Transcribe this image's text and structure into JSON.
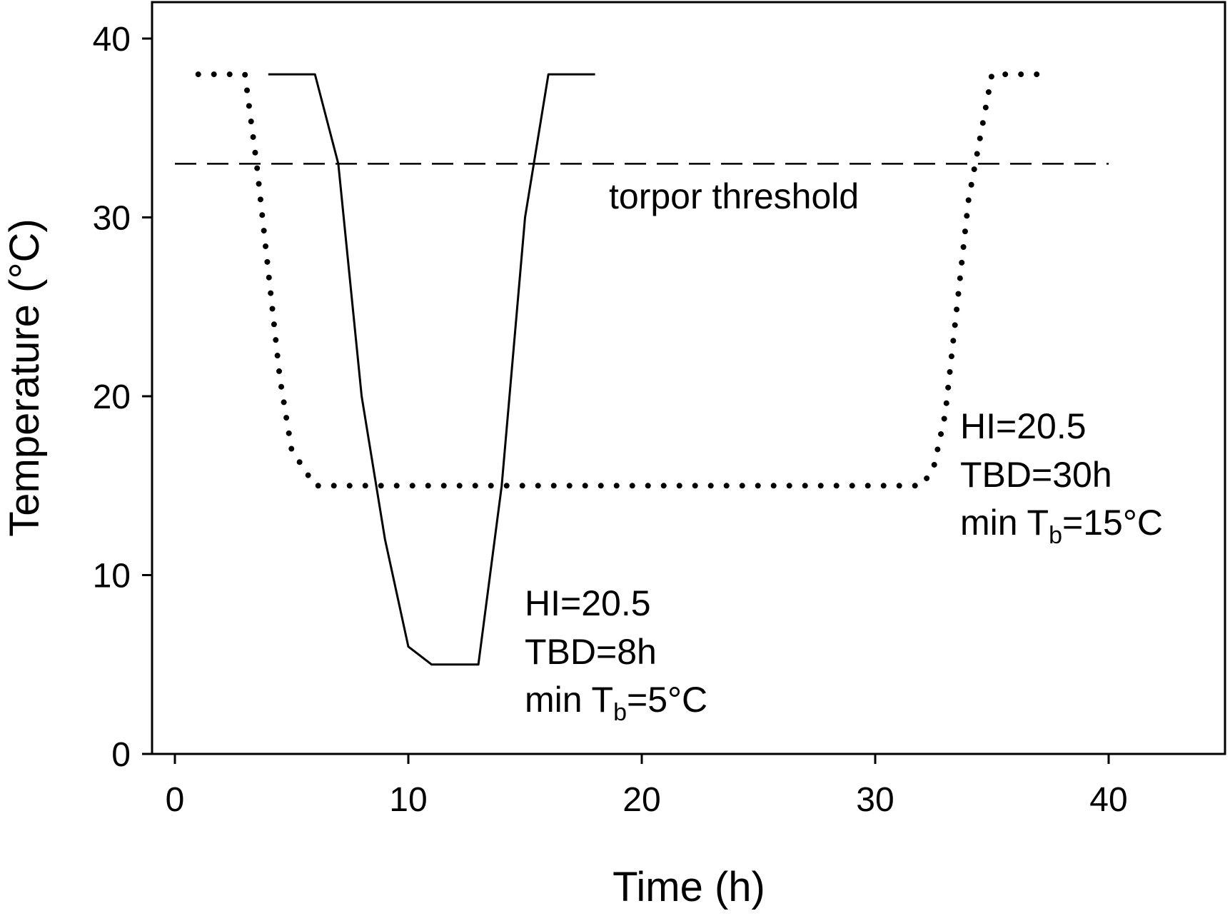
{
  "chart_data": {
    "type": "line",
    "title": "",
    "xlabel": "Time (h)",
    "ylabel": "Temperature (°C)",
    "xlim": [
      -1,
      45
    ],
    "ylim": [
      0,
      42
    ],
    "xticks": [
      0,
      10,
      20,
      30,
      40
    ],
    "yticks": [
      0,
      10,
      20,
      30,
      40
    ],
    "grid": false,
    "legend": "none",
    "series": [
      {
        "style": "solid",
        "color": "#000000",
        "points": [
          [
            4,
            38
          ],
          [
            6,
            38
          ],
          [
            7,
            33
          ],
          [
            8,
            20
          ],
          [
            9,
            12
          ],
          [
            10,
            6
          ],
          [
            11,
            5
          ],
          [
            13,
            5
          ],
          [
            14,
            15
          ],
          [
            15,
            30
          ],
          [
            16,
            38
          ],
          [
            18,
            38
          ]
        ]
      },
      {
        "style": "dotted",
        "color": "#000000",
        "points": [
          [
            1,
            38
          ],
          [
            3,
            38
          ],
          [
            3.5,
            33
          ],
          [
            4,
            27
          ],
          [
            4.5,
            21
          ],
          [
            5,
            17
          ],
          [
            6,
            15
          ],
          [
            32,
            15
          ],
          [
            32.5,
            16
          ],
          [
            33,
            19
          ],
          [
            33.5,
            25
          ],
          [
            34,
            31
          ],
          [
            35,
            38
          ],
          [
            37,
            38
          ]
        ]
      }
    ],
    "threshold": {
      "y": 33,
      "x_start": 0,
      "x_end": 40,
      "style": "dashed",
      "label": "torpor threshold"
    },
    "annotations": [
      {
        "lines": [
          "HI=20.5",
          "TBD=8h"
        ],
        "min_prefix": "min T",
        "min_sub": "b",
        "min_suffix": "=5°C"
      },
      {
        "lines": [
          "HI=20.5",
          "TBD=30h"
        ],
        "min_prefix": "min T",
        "min_sub": "b",
        "min_suffix": "=15°C"
      }
    ]
  }
}
